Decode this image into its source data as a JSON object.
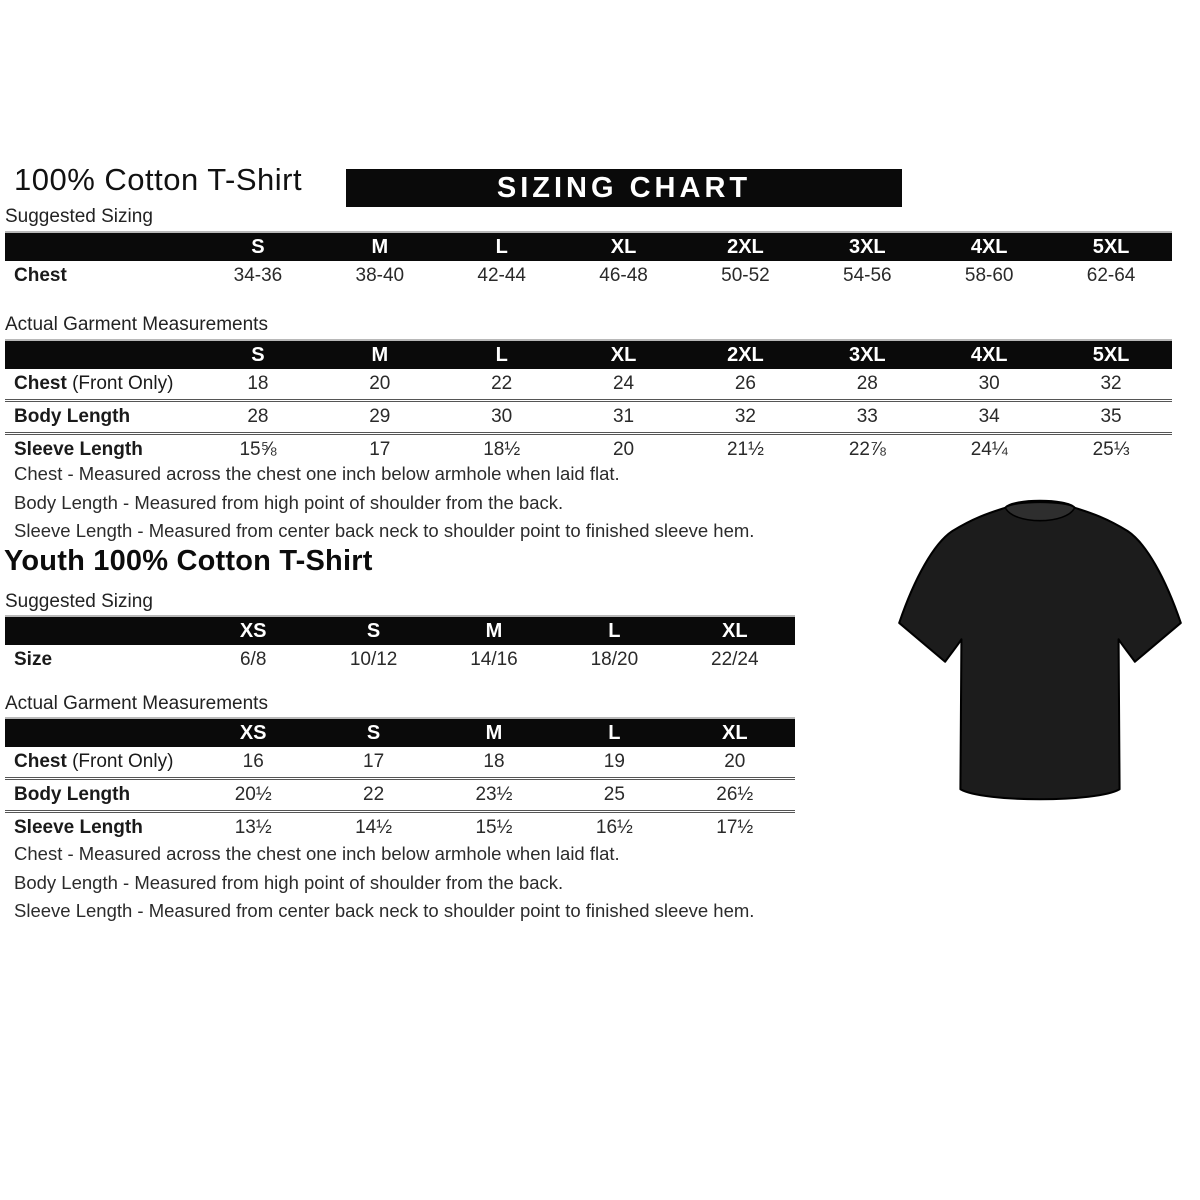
{
  "adult": {
    "title": "100% Cotton T-Shirt",
    "banner": "SIZING CHART",
    "suggested_label": "Suggested Sizing",
    "suggested": {
      "columns": [
        "S",
        "M",
        "L",
        "XL",
        "2XL",
        "3XL",
        "4XL",
        "5XL"
      ],
      "rows": [
        {
          "label": "Chest",
          "suffix": "",
          "values": [
            "34-36",
            "38-40",
            "42-44",
            "46-48",
            "50-52",
            "54-56",
            "58-60",
            "62-64"
          ]
        }
      ]
    },
    "actual_label": "Actual Garment Measurements",
    "actual": {
      "columns": [
        "S",
        "M",
        "L",
        "XL",
        "2XL",
        "3XL",
        "4XL",
        "5XL"
      ],
      "rows": [
        {
          "label": "Chest",
          "suffix": " (Front Only)",
          "values": [
            "18",
            "20",
            "22",
            "24",
            "26",
            "28",
            "30",
            "32"
          ]
        },
        {
          "label": "Body Length",
          "suffix": "",
          "values": [
            "28",
            "29",
            "30",
            "31",
            "32",
            "33",
            "34",
            "35"
          ]
        },
        {
          "label": "Sleeve Length",
          "suffix": "",
          "values": [
            "15⅝",
            "17",
            "18½",
            "20",
            "21½",
            "22⅞",
            "24¼",
            "25⅓"
          ]
        }
      ]
    },
    "notes": [
      "Chest - Measured across the chest one inch below armhole when laid flat.",
      "Body Length - Measured from high point of shoulder from the back.",
      "Sleeve Length - Measured from center back neck to shoulder point to finished sleeve hem."
    ]
  },
  "youth": {
    "title": "Youth 100% Cotton T-Shirt",
    "suggested_label": "Suggested Sizing",
    "suggested": {
      "columns": [
        "XS",
        "S",
        "M",
        "L",
        "XL"
      ],
      "rows": [
        {
          "label": "Size",
          "suffix": "",
          "values": [
            "6/8",
            "10/12",
            "14/16",
            "18/20",
            "22/24"
          ]
        }
      ]
    },
    "actual_label": "Actual Garment Measurements",
    "actual": {
      "columns": [
        "XS",
        "S",
        "M",
        "L",
        "XL"
      ],
      "rows": [
        {
          "label": "Chest",
          "suffix": " (Front Only)",
          "values": [
            "16",
            "17",
            "18",
            "19",
            "20"
          ]
        },
        {
          "label": "Body Length",
          "suffix": "",
          "values": [
            "20½",
            "22",
            "23½",
            "25",
            "26½"
          ]
        },
        {
          "label": "Sleeve Length",
          "suffix": "",
          "values": [
            "13½",
            "14½",
            "15½",
            "16½",
            "17½"
          ]
        }
      ]
    },
    "notes": [
      "Chest - Measured across the chest one inch below armhole when laid flat.",
      "Body Length - Measured from high point of shoulder from the back.",
      "Sleeve Length - Measured from center back neck to shoulder point to finished sleeve hem."
    ]
  },
  "tshirt": {
    "description": "black short-sleeve crew-neck t-shirt photo",
    "color": "#1c1c1c",
    "collar_color": "#2e2e2e"
  }
}
